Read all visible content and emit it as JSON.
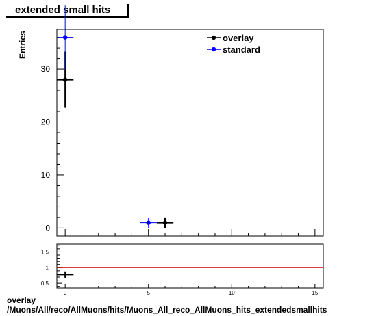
{
  "title": "extended small hits",
  "footer": {
    "line1": "overlay",
    "line2": "/Muons/All/reco/AllMuons/hits/Muons_All_reco_AllMuons_hits_extendedsmallhits"
  },
  "chart_data": [
    {
      "type": "scatter",
      "ylabel": "Entries",
      "xlabel": "",
      "xlim": [
        -0.5,
        15.5
      ],
      "ylim": [
        -1.5,
        37.5
      ],
      "x_ticks": [
        0,
        5,
        10,
        15
      ],
      "y_ticks": [
        0,
        10,
        20,
        30
      ],
      "legend_position": "top-right",
      "series": [
        {
          "name": "overlay",
          "color": "#000000",
          "points": [
            {
              "x": 0,
              "y": 28,
              "err": 5.3
            },
            {
              "x": 6,
              "y": 1,
              "err": 1
            }
          ]
        },
        {
          "name": "standard",
          "color": "#0000ff",
          "points": [
            {
              "x": 0,
              "y": 36,
              "err": 6
            },
            {
              "x": 5,
              "y": 1,
              "err": 1
            }
          ]
        }
      ]
    },
    {
      "type": "scatter",
      "xlim": [
        -0.5,
        15.5
      ],
      "ylim": [
        0.35,
        1.75
      ],
      "x_ticks": [
        0,
        5,
        10,
        15
      ],
      "y_ticks": [
        0.5,
        1,
        1.5
      ],
      "reference_line": 1,
      "reference_color": "#cc0000",
      "points": [
        {
          "x": 0,
          "y": 0.78,
          "err": 0.1
        }
      ]
    }
  ]
}
